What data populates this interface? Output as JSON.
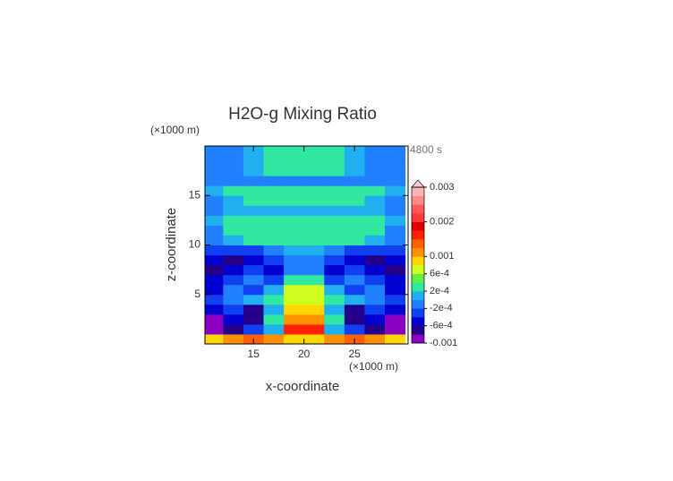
{
  "chart_data": {
    "type": "contour",
    "title": "H2O-g Mixing Ratio",
    "annotation": "4800 s",
    "x_label": "x-coordinate",
    "y_label": "z-coordinate",
    "x_unit": "(×1000 m)",
    "y_unit": "(×1000 m)",
    "xlim": [
      10.2,
      30.3
    ],
    "ylim": [
      0,
      20
    ],
    "xticks": [
      15,
      20,
      25
    ],
    "yticks": [
      5,
      10,
      15
    ],
    "x": [
      11,
      13,
      15,
      17,
      19,
      21,
      23,
      25,
      27,
      29
    ],
    "y": [
      0.5,
      1.5,
      2.5,
      3.5,
      4.5,
      5.5,
      6.5,
      7.5,
      8.5,
      9.5,
      10.5,
      11.5,
      12.5,
      13.5,
      14.5,
      15.5,
      16.5,
      17.5,
      18.5,
      19.5
    ],
    "z": [
      [
        0.0009,
        0.0012,
        0.0013,
        0.0011,
        0.0009,
        0.0009,
        0.0011,
        0.0013,
        0.0012,
        0.0009
      ],
      [
        -0.0009,
        -0.0007,
        -0.0003,
        0.0001,
        0.0016,
        0.0016,
        0.0001,
        -0.0003,
        -0.0007,
        -0.0009
      ],
      [
        -0.0009,
        -0.0005,
        -0.0007,
        0.0003,
        0.0011,
        0.0011,
        0.0003,
        -0.0007,
        -0.0005,
        -0.0009
      ],
      [
        -0.0005,
        -0.0003,
        -0.0007,
        0.0001,
        0.0009,
        0.0009,
        0.0001,
        -0.0007,
        -0.0003,
        -0.0005
      ],
      [
        -0.0003,
        -0.0001,
        0.0001,
        0.0003,
        0.0007,
        0.0007,
        0.0003,
        0.0001,
        -0.0001,
        -0.0003
      ],
      [
        -0.0005,
        -0.0001,
        -0.0003,
        0.0001,
        0.0007,
        0.0007,
        0.0001,
        -0.0003,
        -0.0001,
        -0.0005
      ],
      [
        -0.0005,
        -0.0003,
        -0.0001,
        -0.0003,
        0.0003,
        0.0003,
        -0.0003,
        -0.0001,
        -0.0003,
        -0.0005
      ],
      [
        -0.0007,
        -0.0005,
        -0.0003,
        -0.0005,
        -0.0001,
        -0.0001,
        -0.0005,
        -0.0003,
        -0.0005,
        -0.0007
      ],
      [
        -0.0005,
        -0.0007,
        -0.0005,
        -0.0003,
        -0.0001,
        -0.0001,
        -0.0003,
        -0.0005,
        -0.0007,
        -0.0005
      ],
      [
        -0.0003,
        -0.0003,
        -0.0003,
        -0.0001,
        0.0001,
        0.0001,
        -0.0001,
        -0.0003,
        -0.0003,
        -0.0003
      ],
      [
        -0.0001,
        0.0001,
        0.0003,
        0.0003,
        0.0003,
        0.0003,
        0.0003,
        0.0003,
        0.0001,
        -0.0001
      ],
      [
        -0.0001,
        0.0003,
        0.0003,
        0.0003,
        0.0003,
        0.0003,
        0.0003,
        0.0003,
        0.0003,
        -0.0001
      ],
      [
        0.0001,
        0.0003,
        0.0003,
        0.0003,
        0.0003,
        0.0003,
        0.0003,
        0.0003,
        0.0003,
        0.0001
      ],
      [
        -0.0001,
        0.0001,
        0.0001,
        0.0001,
        0.0001,
        0.0001,
        0.0001,
        0.0001,
        0.0001,
        -0.0001
      ],
      [
        -0.0001,
        0.0001,
        0.0003,
        0.0003,
        0.0003,
        0.0003,
        0.0003,
        0.0003,
        0.0001,
        -0.0001
      ],
      [
        0.0001,
        0.0003,
        0.0003,
        0.0003,
        0.0003,
        0.0003,
        0.0003,
        0.0003,
        0.0003,
        0.0001
      ],
      [
        -0.0001,
        -0.0001,
        -0.0001,
        -0.0001,
        -0.0001,
        -0.0001,
        -0.0001,
        -0.0001,
        -0.0001,
        -0.0001
      ],
      [
        -0.0001,
        -0.0001,
        0.0001,
        0.0003,
        0.0003,
        0.0003,
        0.0003,
        0.0001,
        -0.0001,
        -0.0001
      ],
      [
        -0.0001,
        -0.0001,
        0.0001,
        0.0003,
        0.0003,
        0.0003,
        0.0003,
        0.0001,
        -0.0001,
        -0.0001
      ],
      [
        -0.0001,
        -0.0001,
        0.0001,
        0.0003,
        0.0003,
        0.0003,
        0.0003,
        0.0001,
        -0.0001,
        -0.0001
      ]
    ],
    "colorbar": {
      "levels": [
        -0.001,
        -0.0008,
        -0.0006,
        -0.0004,
        -0.0002,
        0,
        0.0002,
        0.0004,
        0.0006,
        0.0008,
        0.001,
        0.00125,
        0.0015,
        0.00175,
        0.002,
        0.00225,
        0.0025,
        0.00275,
        0.003
      ],
      "colors": [
        "#8a00c4",
        "#22008c",
        "#0000d0",
        "#1040f0",
        "#2080ff",
        "#20b0f0",
        "#30e8a0",
        "#60f040",
        "#d0ff20",
        "#ffd800",
        "#ff9000",
        "#ff6000",
        "#ff2000",
        "#e00000",
        "#ff3838",
        "#ff5858",
        "#ff8888",
        "#ffb4b4"
      ],
      "over_color": "#ffcccc",
      "ticks": [
        0.003,
        0.002,
        0.001,
        {
          "value": 0.0006,
          "label": "6e-4"
        },
        {
          "value": 0.0002,
          "label": "2e-4"
        },
        {
          "value": -0.0002,
          "label": "-2e-4"
        },
        {
          "value": -0.0006,
          "label": "-6e-4"
        },
        -0.001
      ]
    }
  }
}
